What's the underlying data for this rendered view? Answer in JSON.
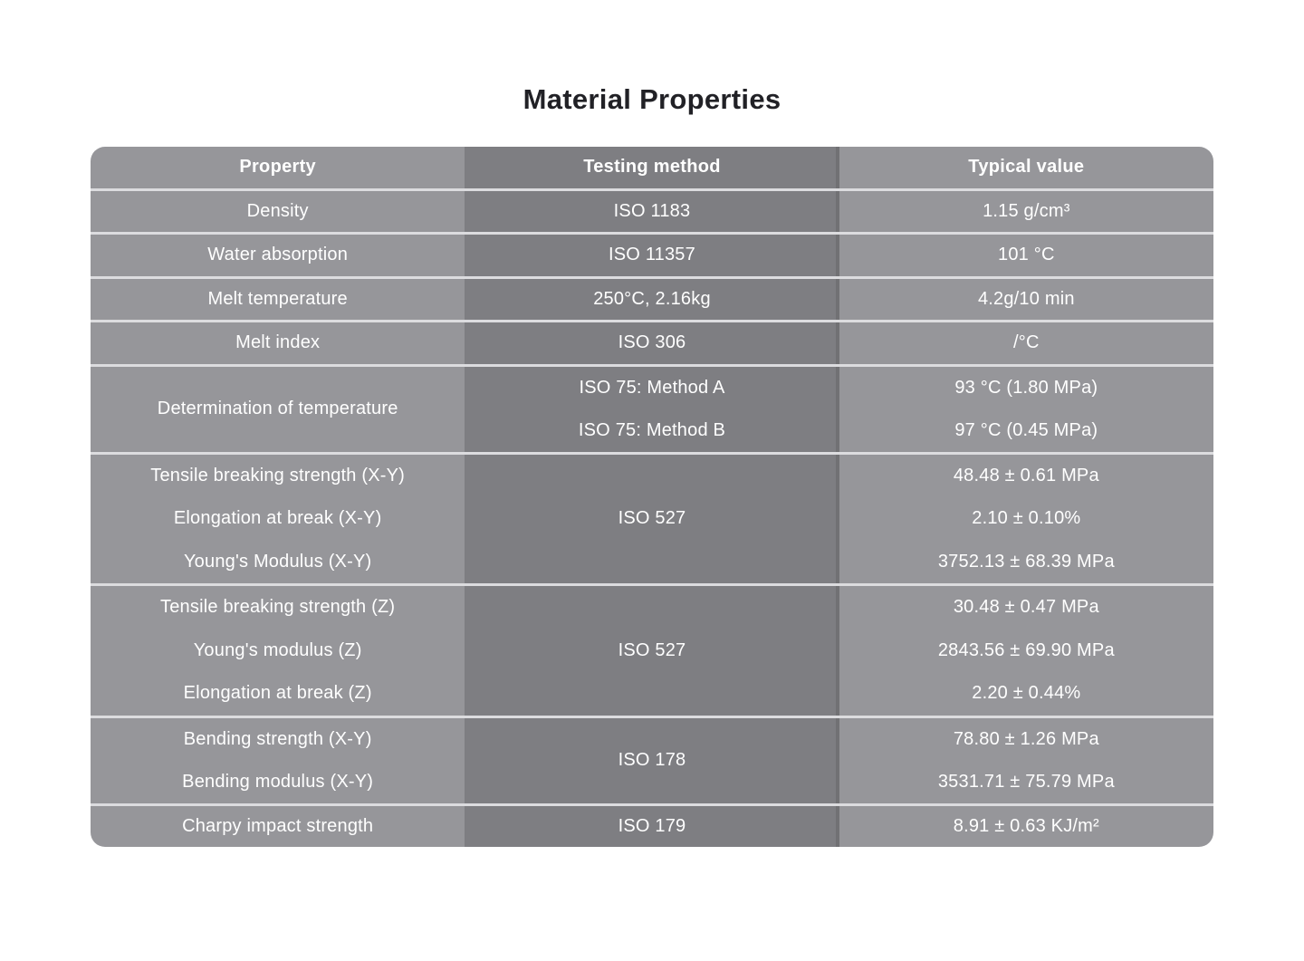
{
  "title": "Material Properties",
  "colors": {
    "background": "#ffffff",
    "title_text": "#212126",
    "light_cell": "#96969a",
    "dark_cell": "#7e7e82",
    "divider": "#dcdcdf",
    "text": "#ffffff"
  },
  "table": {
    "headers": [
      "Property",
      "Testing method",
      "Typical value"
    ],
    "groups": [
      {
        "properties": [
          "Density"
        ],
        "methods": [
          "ISO 1183"
        ],
        "values": [
          "1.15 g/cm³"
        ]
      },
      {
        "properties": [
          "Water absorption"
        ],
        "methods": [
          "ISO 11357"
        ],
        "values": [
          "101 °C"
        ]
      },
      {
        "properties": [
          "Melt temperature"
        ],
        "methods": [
          "250°C, 2.16kg"
        ],
        "values": [
          "4.2g/10 min"
        ]
      },
      {
        "properties": [
          "Melt index"
        ],
        "methods": [
          "ISO 306"
        ],
        "values": [
          "/°C"
        ]
      },
      {
        "properties": [
          "Determination of temperature"
        ],
        "methods": [
          "ISO 75: Method A",
          "ISO 75: Method B"
        ],
        "values": [
          "93 °C (1.80 MPa)",
          "97 °C (0.45 MPa)"
        ]
      },
      {
        "properties": [
          "Tensile breaking strength (X-Y)",
          "Elongation at break (X-Y)",
          "Young's Modulus (X-Y)"
        ],
        "methods": [
          "ISO 527"
        ],
        "values": [
          "48.48 ± 0.61 MPa",
          "2.10 ± 0.10%",
          "3752.13 ± 68.39 MPa"
        ]
      },
      {
        "properties": [
          "Tensile breaking strength (Z)",
          "Young's modulus (Z)",
          "Elongation at break (Z)"
        ],
        "methods": [
          "ISO 527"
        ],
        "values": [
          "30.48 ± 0.47 MPa",
          "2843.56 ± 69.90 MPa",
          "2.20 ± 0.44%"
        ]
      },
      {
        "properties": [
          "Bending strength (X-Y)",
          "Bending modulus (X-Y)"
        ],
        "methods": [
          "ISO 178"
        ],
        "values": [
          "78.80 ± 1.26 MPa",
          "3531.71 ± 75.79 MPa"
        ]
      },
      {
        "properties": [
          "Charpy impact strength"
        ],
        "methods": [
          "ISO 179"
        ],
        "values": [
          "8.91 ± 0.63 KJ/m²"
        ]
      }
    ]
  }
}
